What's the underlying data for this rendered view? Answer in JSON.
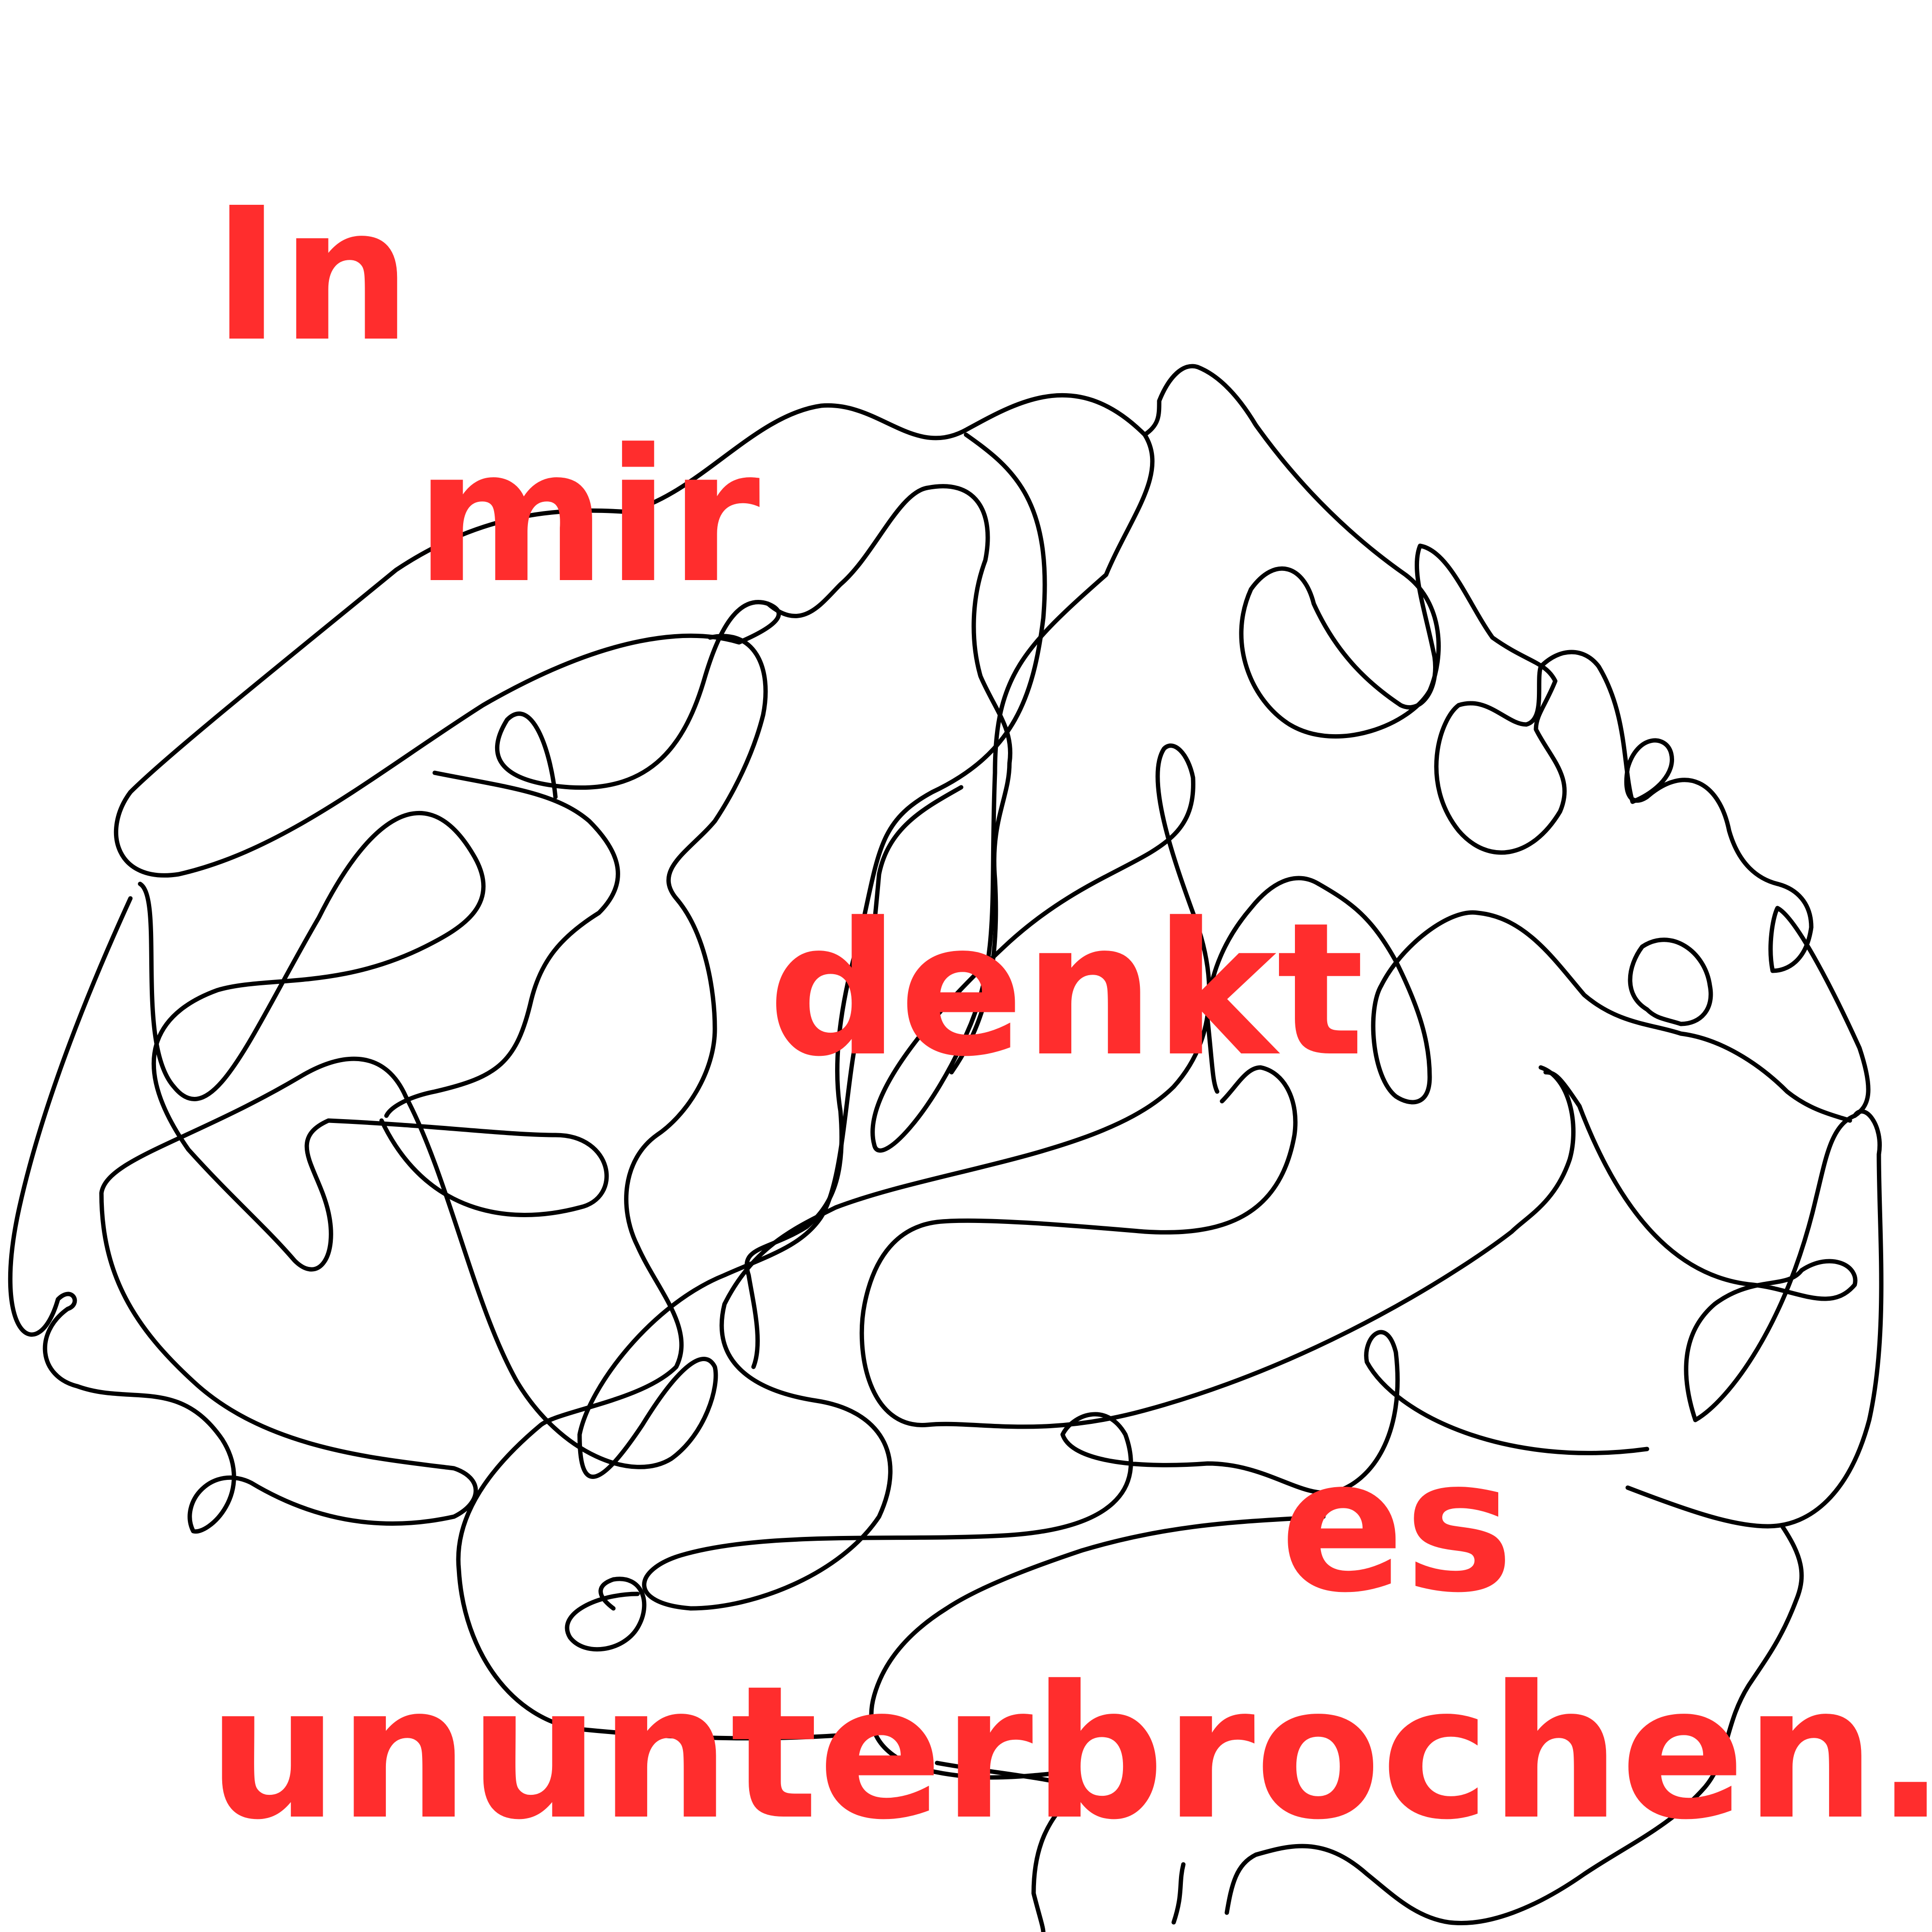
{
  "poster": {
    "background": "#ffffff",
    "text_color": "#ff2d2d",
    "line_color": "#000000",
    "illustration": "brain-line-drawing",
    "words": [
      "In",
      "mir",
      "denkt",
      "es",
      "ununterbrochen."
    ]
  }
}
